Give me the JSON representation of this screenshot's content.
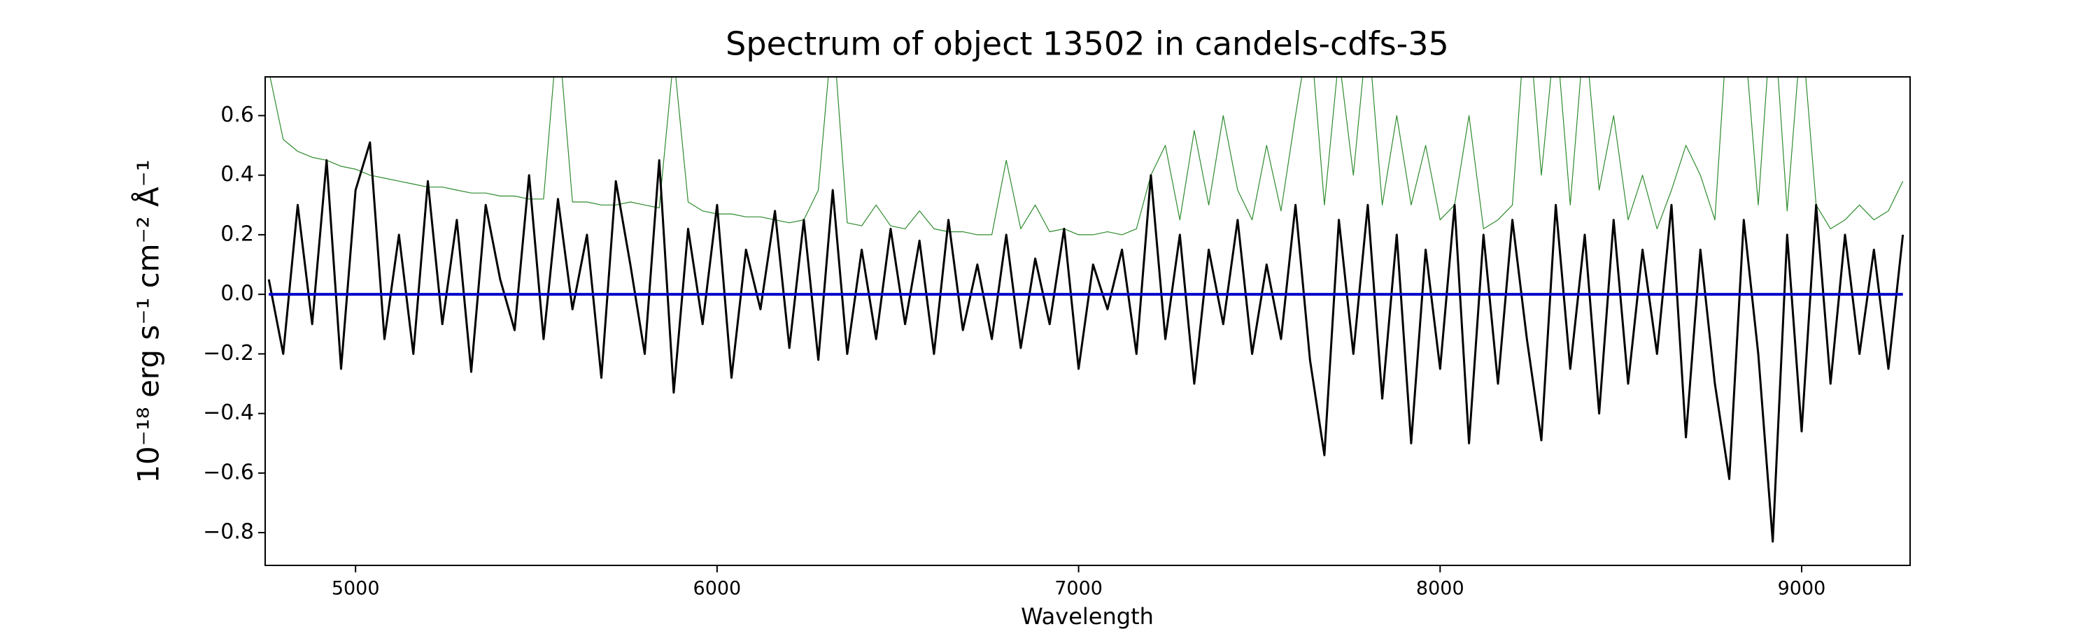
{
  "chart_data": {
    "type": "line",
    "title": "Spectrum of object 13502 in candels-cdfs-35",
    "xlabel": "Wavelength",
    "ylabel": "10⁻¹⁸ erg s⁻¹ cm⁻² Å⁻¹",
    "xlim": [
      4750,
      9300
    ],
    "ylim": [
      -0.91,
      0.73
    ],
    "xticks": [
      5000,
      6000,
      7000,
      8000,
      9000
    ],
    "yticks": [
      {
        "value": -0.8,
        "label": "−0.8"
      },
      {
        "value": -0.6,
        "label": "−0.6"
      },
      {
        "value": -0.4,
        "label": "−0.4"
      },
      {
        "value": -0.2,
        "label": "−0.2"
      },
      {
        "value": 0,
        "label": "0.0"
      },
      0.2,
      0.4,
      0.6
    ],
    "grid": false,
    "x": [
      4760,
      4800,
      4840,
      4880,
      4920,
      4960,
      5000,
      5040,
      5080,
      5120,
      5160,
      5200,
      5240,
      5280,
      5320,
      5360,
      5400,
      5440,
      5480,
      5520,
      5560,
      5600,
      5640,
      5680,
      5720,
      5760,
      5800,
      5840,
      5880,
      5920,
      5960,
      6000,
      6040,
      6080,
      6120,
      6160,
      6200,
      6240,
      6280,
      6320,
      6360,
      6400,
      6440,
      6480,
      6520,
      6560,
      6600,
      6640,
      6680,
      6720,
      6760,
      6800,
      6840,
      6880,
      6920,
      6960,
      7000,
      7040,
      7080,
      7120,
      7160,
      7200,
      7240,
      7280,
      7320,
      7360,
      7400,
      7440,
      7480,
      7520,
      7560,
      7600,
      7640,
      7680,
      7720,
      7760,
      7800,
      7840,
      7880,
      7920,
      7960,
      8000,
      8040,
      8080,
      8120,
      8160,
      8200,
      8240,
      8280,
      8320,
      8360,
      8400,
      8440,
      8480,
      8520,
      8560,
      8600,
      8640,
      8680,
      8720,
      8760,
      8800,
      8840,
      8880,
      8920,
      8960,
      9000,
      9040,
      9080,
      9120,
      9160,
      9200,
      9240,
      9280
    ],
    "series": [
      {
        "color": "#2e8b2e",
        "linewidth": 1.2,
        "values": [
          0.75,
          0.52,
          0.48,
          0.46,
          0.45,
          0.43,
          0.42,
          0.4,
          0.39,
          0.38,
          0.37,
          0.36,
          0.36,
          0.35,
          0.34,
          0.34,
          0.33,
          0.33,
          0.32,
          0.32,
          0.9,
          0.31,
          0.31,
          0.3,
          0.3,
          0.31,
          0.3,
          0.29,
          0.8,
          0.31,
          0.28,
          0.27,
          0.27,
          0.26,
          0.26,
          0.25,
          0.24,
          0.25,
          0.35,
          0.9,
          0.24,
          0.23,
          0.3,
          0.23,
          0.22,
          0.28,
          0.22,
          0.21,
          0.21,
          0.2,
          0.2,
          0.45,
          0.22,
          0.3,
          0.21,
          0.22,
          0.2,
          0.2,
          0.21,
          0.2,
          0.22,
          0.4,
          0.5,
          0.25,
          0.55,
          0.3,
          0.6,
          0.35,
          0.25,
          0.5,
          0.28,
          0.6,
          0.9,
          0.3,
          0.8,
          0.4,
          0.9,
          0.3,
          0.6,
          0.3,
          0.5,
          0.25,
          0.3,
          0.6,
          0.22,
          0.25,
          0.3,
          1.0,
          0.4,
          0.9,
          0.3,
          0.9,
          0.35,
          0.6,
          0.25,
          0.4,
          0.22,
          0.35,
          0.5,
          0.4,
          0.25,
          1.0,
          0.9,
          0.3,
          1.0,
          0.28,
          0.9,
          0.3,
          0.22,
          0.25,
          0.3,
          0.25,
          0.28,
          0.38
        ]
      },
      {
        "color": "#000000",
        "linewidth": 3,
        "values": [
          0.05,
          -0.2,
          0.3,
          -0.1,
          0.45,
          -0.25,
          0.35,
          0.51,
          -0.15,
          0.2,
          -0.2,
          0.38,
          -0.1,
          0.25,
          -0.26,
          0.3,
          0.05,
          -0.12,
          0.4,
          -0.15,
          0.32,
          -0.05,
          0.2,
          -0.28,
          0.38,
          0.1,
          -0.2,
          0.45,
          -0.33,
          0.22,
          -0.1,
          0.3,
          -0.28,
          0.15,
          -0.05,
          0.28,
          -0.18,
          0.25,
          -0.22,
          0.35,
          -0.2,
          0.15,
          -0.15,
          0.22,
          -0.1,
          0.18,
          -0.2,
          0.25,
          -0.12,
          0.1,
          -0.15,
          0.2,
          -0.18,
          0.12,
          -0.1,
          0.22,
          -0.25,
          0.1,
          -0.05,
          0.15,
          -0.2,
          0.4,
          -0.15,
          0.2,
          -0.3,
          0.15,
          -0.1,
          0.25,
          -0.2,
          0.1,
          -0.15,
          0.3,
          -0.22,
          -0.54,
          0.25,
          -0.2,
          0.3,
          -0.35,
          0.2,
          -0.5,
          0.15,
          -0.25,
          0.3,
          -0.5,
          0.2,
          -0.3,
          0.25,
          -0.15,
          -0.49,
          0.3,
          -0.25,
          0.2,
          -0.4,
          0.25,
          -0.3,
          0.15,
          -0.2,
          0.3,
          -0.48,
          0.15,
          -0.3,
          -0.62,
          0.25,
          -0.2,
          -0.83,
          0.2,
          -0.46,
          0.3,
          -0.3,
          0.2,
          -0.2,
          0.15,
          -0.25,
          0.2
        ]
      },
      {
        "color": "#0000cc",
        "linewidth": 4,
        "values": [
          0,
          0,
          0,
          0,
          0,
          0,
          0,
          0,
          0,
          0,
          0,
          0,
          0,
          0,
          0,
          0,
          0,
          0,
          0,
          0,
          0,
          0,
          0,
          0,
          0,
          0,
          0,
          0,
          0,
          0,
          0,
          0,
          0,
          0,
          0,
          0,
          0,
          0,
          0,
          0,
          0,
          0,
          0,
          0,
          0,
          0,
          0,
          0,
          0,
          0,
          0,
          0,
          0,
          0,
          0,
          0,
          0,
          0,
          0,
          0,
          0,
          0,
          0,
          0,
          0,
          0,
          0,
          0,
          0,
          0,
          0,
          0,
          0,
          0,
          0,
          0,
          0,
          0,
          0,
          0,
          0,
          0,
          0,
          0,
          0,
          0,
          0,
          0,
          0,
          0,
          0,
          0,
          0,
          0,
          0,
          0,
          0,
          0,
          0,
          0,
          0,
          0,
          0,
          0,
          0,
          0,
          0,
          0,
          0,
          0,
          0,
          0,
          0,
          0
        ]
      }
    ]
  }
}
